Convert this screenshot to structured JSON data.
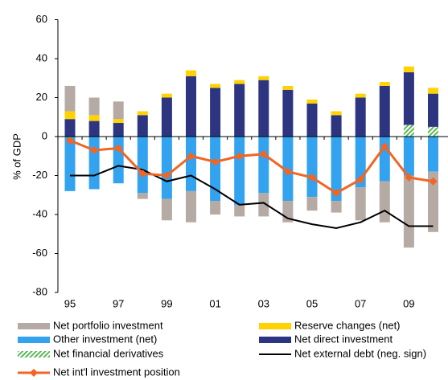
{
  "chart_data": {
    "type": "bar",
    "stacked": true,
    "y_label": "% of GDP",
    "categories": [
      "95",
      null,
      "97",
      null,
      "99",
      null,
      "01",
      null,
      "03",
      null,
      "05",
      null,
      "07",
      null,
      "09",
      null
    ],
    "ylim": [
      -80,
      60
    ],
    "yticks": [
      -80,
      -60,
      -40,
      -20,
      0,
      20,
      40,
      60
    ],
    "grid": false,
    "series": [
      {
        "name": "Net financial derivatives",
        "type": "bar",
        "color": "#5cb85c",
        "pattern": "hatch",
        "values": [
          0,
          0,
          0,
          0,
          0,
          0,
          0,
          0,
          0,
          0,
          0,
          0,
          0,
          0,
          6,
          5
        ]
      },
      {
        "name": "Net direct investment",
        "type": "bar",
        "color": "#2e3580",
        "values": [
          9,
          8,
          7,
          11,
          20,
          31,
          25,
          27,
          29,
          24,
          17,
          11,
          20,
          26,
          27,
          17
        ]
      },
      {
        "name": "Reserve changes (net)",
        "type": "bar",
        "color": "#ffd200",
        "values": [
          4,
          3,
          2,
          2,
          2,
          3,
          2,
          2,
          2,
          2,
          2,
          2,
          2,
          2,
          3,
          3
        ]
      },
      {
        "name": "Other investment (net)",
        "type": "bar",
        "color": "#33a3f0",
        "values": [
          -28,
          -27,
          -24,
          -29,
          -32,
          -28,
          -33,
          -35,
          -29,
          -33,
          -31,
          -33,
          -26,
          -23,
          -20,
          -18
        ]
      },
      {
        "name": "Net portfolio investment",
        "type": "bar",
        "color": "#b5aba4",
        "values": [
          13,
          9,
          9,
          -3,
          -11,
          -16,
          -7,
          -6,
          -12,
          -11,
          -7,
          -6,
          -17,
          -21,
          -37,
          -31
        ]
      },
      {
        "name": "Net external debt (neg. sign)",
        "type": "line",
        "color": "#000000",
        "values": [
          -20,
          -20,
          -15,
          -17,
          -23,
          -20,
          -27,
          -35,
          -34,
          -42,
          -45,
          -47,
          -44,
          -38,
          -46,
          -46
        ]
      },
      {
        "name": "Net int'l investment position",
        "type": "line",
        "color": "#f26522",
        "marker": "diamond",
        "values": [
          -2,
          -7,
          -6,
          -19,
          -20,
          -10,
          -13,
          -10,
          -9,
          -18,
          -21,
          -29,
          -22,
          -5,
          -21,
          -23
        ]
      }
    ],
    "legend_order": [
      4,
      2,
      3,
      1,
      0,
      5,
      6
    ]
  }
}
